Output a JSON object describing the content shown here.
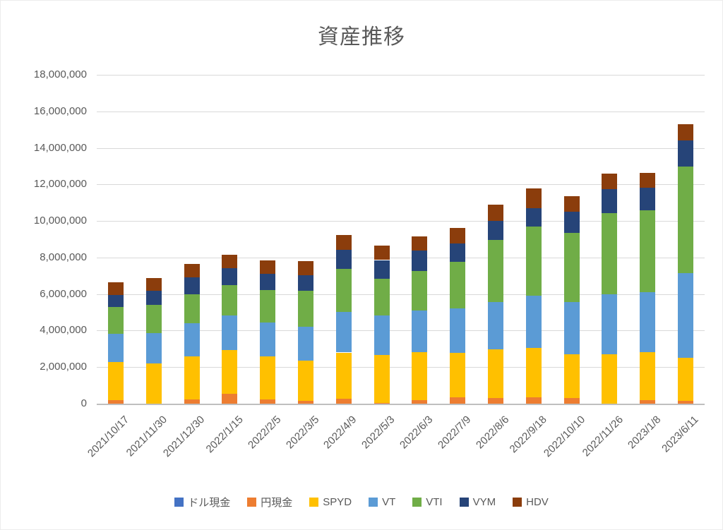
{
  "chart_data": {
    "type": "bar",
    "stacked": true,
    "title": "資産推移",
    "xlabel": "",
    "ylabel": "",
    "ylim": [
      0,
      18000000
    ],
    "y_step": 2000000,
    "grid": true,
    "legend_position": "bottom",
    "y_ticks": [
      "0",
      "2,000,000",
      "4,000,000",
      "6,000,000",
      "8,000,000",
      "10,000,000",
      "12,000,000",
      "14,000,000",
      "16,000,000",
      "18,000,000"
    ],
    "categories": [
      "2021/10/17",
      "2021/11/30",
      "2021/12/30",
      "2022/1/15",
      "2022/2/5",
      "2022/3/5",
      "2022/4/9",
      "2022/5/3",
      "2022/6/3",
      "2022/7/9",
      "2022/8/6",
      "2022/9/18",
      "2022/10/10",
      "2022/11/26",
      "2023/1/8",
      "2023/6/11"
    ],
    "series": [
      {
        "key": "dollar-cash",
        "name": "ドル現金",
        "color": "#4472C4",
        "values": [
          0,
          0,
          0,
          0,
          0,
          0,
          0,
          0,
          0,
          0,
          0,
          0,
          0,
          0,
          0,
          0
        ]
      },
      {
        "key": "yen-cash",
        "name": "円現金",
        "color": "#ED7D31",
        "values": [
          200000,
          0,
          250000,
          550000,
          250000,
          160000,
          280000,
          50000,
          210000,
          340000,
          300000,
          350000,
          300000,
          0,
          200000,
          160000
        ]
      },
      {
        "key": "spyd",
        "name": "SPYD",
        "color": "#FFC000",
        "values": [
          2080000,
          2210000,
          2340000,
          2400000,
          2340000,
          2210000,
          2520000,
          2600000,
          2610000,
          2460000,
          2680000,
          2690000,
          2390000,
          2690000,
          2620000,
          2340000
        ]
      },
      {
        "key": "vt",
        "name": "VT",
        "color": "#5B9BD5",
        "values": [
          1530000,
          1670000,
          1820000,
          1870000,
          1840000,
          1840000,
          2210000,
          2190000,
          2280000,
          2430000,
          2570000,
          2870000,
          2860000,
          3280000,
          3280000,
          4660000
        ]
      },
      {
        "key": "vti",
        "name": "VTI",
        "color": "#70AD47",
        "values": [
          1480000,
          1510000,
          1560000,
          1670000,
          1770000,
          1960000,
          2380000,
          2000000,
          2180000,
          2520000,
          3410000,
          3780000,
          3790000,
          4470000,
          4470000,
          5800000
        ]
      },
      {
        "key": "vym",
        "name": "VYM",
        "color": "#264478",
        "values": [
          640000,
          800000,
          930000,
          920000,
          910000,
          860000,
          1030000,
          1020000,
          1100000,
          1030000,
          1060000,
          1010000,
          1170000,
          1300000,
          1260000,
          1460000
        ]
      },
      {
        "key": "hdv",
        "name": "HDV",
        "color": "#8B3D0C",
        "values": [
          730000,
          690000,
          730000,
          750000,
          750000,
          780000,
          810000,
          790000,
          780000,
          820000,
          870000,
          1090000,
          840000,
          860000,
          810000,
          880000
        ]
      }
    ]
  }
}
